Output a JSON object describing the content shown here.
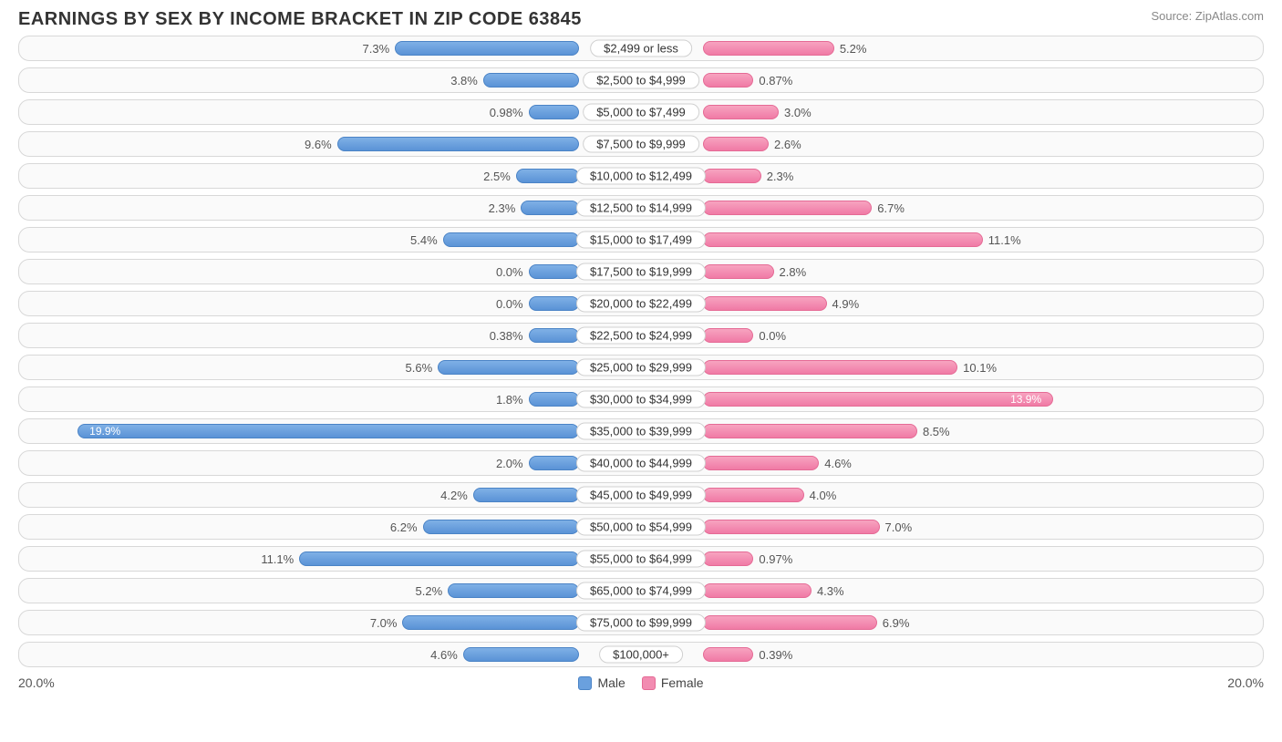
{
  "title": "EARNINGS BY SEX BY INCOME BRACKET IN ZIP CODE 63845",
  "source": "Source: ZipAtlas.com",
  "axis_max_label_left": "20.0%",
  "axis_max_label_right": "20.0%",
  "legend": {
    "male": "Male",
    "female": "Female"
  },
  "chart": {
    "type": "diverging-bar",
    "axis_max": 20.0,
    "male_color": "#6aa0de",
    "female_color": "#f28cb1",
    "row_bg": "#fafafa",
    "row_border": "#d8d8d8",
    "label_half_width_pct": 10.0,
    "min_stub_pct": 2.0,
    "rows": [
      {
        "bracket": "$2,499 or less",
        "male": 7.3,
        "female": 5.2,
        "male_label": "7.3%",
        "female_label": "5.2%"
      },
      {
        "bracket": "$2,500 to $4,999",
        "male": 3.8,
        "female": 0.87,
        "male_label": "3.8%",
        "female_label": "0.87%"
      },
      {
        "bracket": "$5,000 to $7,499",
        "male": 0.98,
        "female": 3.0,
        "male_label": "0.98%",
        "female_label": "3.0%"
      },
      {
        "bracket": "$7,500 to $9,999",
        "male": 9.6,
        "female": 2.6,
        "male_label": "9.6%",
        "female_label": "2.6%"
      },
      {
        "bracket": "$10,000 to $12,499",
        "male": 2.5,
        "female": 2.3,
        "male_label": "2.5%",
        "female_label": "2.3%"
      },
      {
        "bracket": "$12,500 to $14,999",
        "male": 2.3,
        "female": 6.7,
        "male_label": "2.3%",
        "female_label": "6.7%"
      },
      {
        "bracket": "$15,000 to $17,499",
        "male": 5.4,
        "female": 11.1,
        "male_label": "5.4%",
        "female_label": "11.1%"
      },
      {
        "bracket": "$17,500 to $19,999",
        "male": 0.0,
        "female": 2.8,
        "male_label": "0.0%",
        "female_label": "2.8%"
      },
      {
        "bracket": "$20,000 to $22,499",
        "male": 0.0,
        "female": 4.9,
        "male_label": "0.0%",
        "female_label": "4.9%"
      },
      {
        "bracket": "$22,500 to $24,999",
        "male": 0.38,
        "female": 0.0,
        "male_label": "0.38%",
        "female_label": "0.0%"
      },
      {
        "bracket": "$25,000 to $29,999",
        "male": 5.6,
        "female": 10.1,
        "male_label": "5.6%",
        "female_label": "10.1%"
      },
      {
        "bracket": "$30,000 to $34,999",
        "male": 1.8,
        "female": 13.9,
        "male_label": "1.8%",
        "female_label": "13.9%",
        "female_inside": true
      },
      {
        "bracket": "$35,000 to $39,999",
        "male": 19.9,
        "female": 8.5,
        "male_label": "19.9%",
        "female_label": "8.5%",
        "male_inside": true
      },
      {
        "bracket": "$40,000 to $44,999",
        "male": 2.0,
        "female": 4.6,
        "male_label": "2.0%",
        "female_label": "4.6%"
      },
      {
        "bracket": "$45,000 to $49,999",
        "male": 4.2,
        "female": 4.0,
        "male_label": "4.2%",
        "female_label": "4.0%"
      },
      {
        "bracket": "$50,000 to $54,999",
        "male": 6.2,
        "female": 7.0,
        "male_label": "6.2%",
        "female_label": "7.0%"
      },
      {
        "bracket": "$55,000 to $64,999",
        "male": 11.1,
        "female": 0.97,
        "male_label": "11.1%",
        "female_label": "0.97%"
      },
      {
        "bracket": "$65,000 to $74,999",
        "male": 5.2,
        "female": 4.3,
        "male_label": "5.2%",
        "female_label": "4.3%"
      },
      {
        "bracket": "$75,000 to $99,999",
        "male": 7.0,
        "female": 6.9,
        "male_label": "7.0%",
        "female_label": "6.9%"
      },
      {
        "bracket": "$100,000+",
        "male": 4.6,
        "female": 0.39,
        "male_label": "4.6%",
        "female_label": "0.39%"
      }
    ]
  }
}
